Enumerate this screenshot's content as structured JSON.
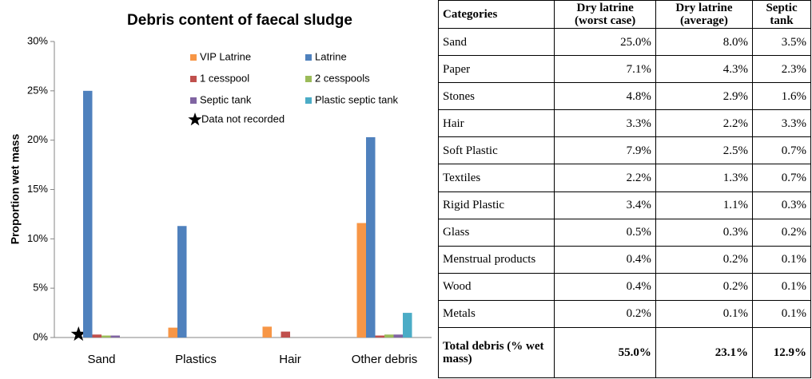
{
  "chart_data": {
    "type": "bar",
    "title": "Debris content of faecal sludge",
    "y_label": "Proportion wet mass",
    "categories": [
      "Sand",
      "Plastics",
      "Hair",
      "Other debris"
    ],
    "series": [
      {
        "name": "VIP Latrine",
        "color": "#f79646",
        "values": [
          null,
          1.0,
          1.1,
          11.6
        ]
      },
      {
        "name": "Latrine",
        "color": "#4f81bd",
        "values": [
          25.0,
          11.3,
          0,
          20.3
        ]
      },
      {
        "name": "1 cesspool",
        "color": "#c0504d",
        "values": [
          0.3,
          0,
          0.6,
          0.2
        ]
      },
      {
        "name": "2 cesspools",
        "color": "#9bbb59",
        "values": [
          0.2,
          0,
          0,
          0.3
        ]
      },
      {
        "name": "Septic tank",
        "color": "#8064a2",
        "values": [
          0.2,
          0,
          0,
          0.3
        ]
      },
      {
        "name": "Plastic septic tank",
        "color": "#4bacc6",
        "values": [
          0,
          0,
          0,
          2.5
        ]
      }
    ],
    "annotation": "Data not recorded",
    "ylim": [
      0,
      30
    ],
    "yticks": [
      {
        "value": 0,
        "label": "0%"
      },
      {
        "value": 5,
        "label": "5%"
      },
      {
        "value": 10,
        "label": "10%"
      },
      {
        "value": 15,
        "label": "15%"
      },
      {
        "value": 20,
        "label": "20%"
      },
      {
        "value": 25,
        "label": "25%"
      },
      {
        "value": 30,
        "label": "30%"
      }
    ],
    "grid": false
  },
  "table": {
    "header": [
      "Categories",
      "Dry latrine (worst case)",
      "Dry latrine (average)",
      "Septic tank"
    ],
    "rows": [
      [
        "Sand",
        "25.0%",
        "8.0%",
        "3.5%"
      ],
      [
        "Paper",
        "7.1%",
        "4.3%",
        "2.3%"
      ],
      [
        "Stones",
        "4.8%",
        "2.9%",
        "1.6%"
      ],
      [
        "Hair",
        "3.3%",
        "2.2%",
        "3.3%"
      ],
      [
        "Soft Plastic",
        "7.9%",
        "2.5%",
        "0.7%"
      ],
      [
        "Textiles",
        "2.2%",
        "1.3%",
        "0.7%"
      ],
      [
        "Rigid Plastic",
        "3.4%",
        "1.1%",
        "0.3%"
      ],
      [
        "Glass",
        "0.5%",
        "0.3%",
        "0.2%"
      ],
      [
        "Menstrual products",
        "0.4%",
        "0.2%",
        "0.1%"
      ],
      [
        "Wood",
        "0.4%",
        "0.2%",
        "0.1%"
      ],
      [
        "Metals",
        "0.2%",
        "0.1%",
        "0.1%"
      ],
      [
        "Total debris (% wet mass)",
        "55.0%",
        "23.1%",
        "12.9%"
      ]
    ]
  }
}
